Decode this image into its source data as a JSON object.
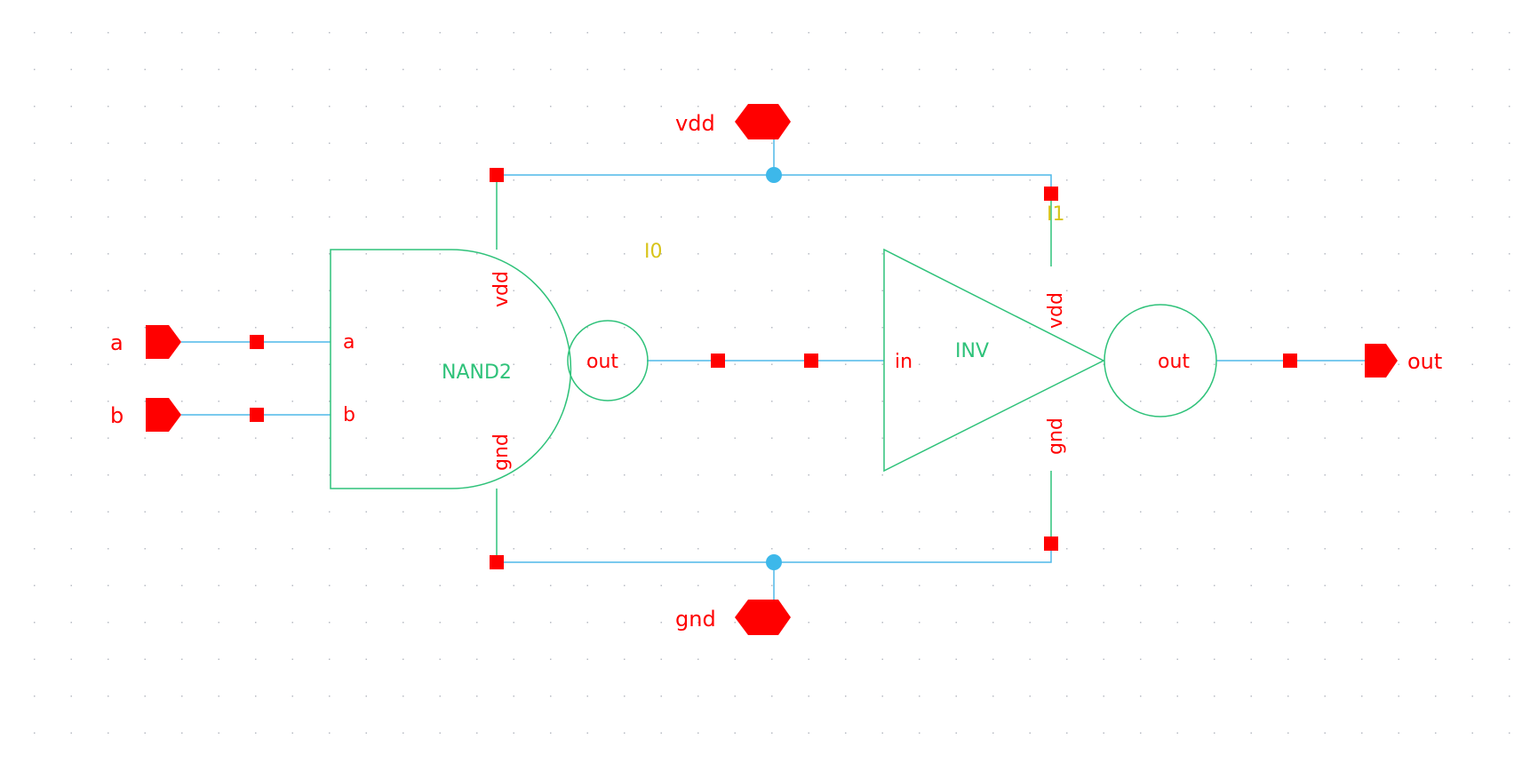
{
  "colors": {
    "background": "#ffffff",
    "grid_dot": "#b8bcc4",
    "wire": "#4fb8e8",
    "symbol": "#2fc27a",
    "pin": "#ff0000",
    "pin_label": "#ff0000",
    "instance_name": "#d8c41a",
    "junction": "#3db8ea"
  },
  "pins": {
    "a": "a",
    "b": "b",
    "out": "out",
    "vdd": "vdd",
    "gnd": "gnd"
  },
  "nand": {
    "instance": "I0",
    "cell": "NAND2",
    "pin_a": "a",
    "pin_b": "b",
    "pin_out": "out",
    "pin_vdd": "vdd",
    "pin_gnd": "gnd"
  },
  "inv": {
    "instance": "I1",
    "cell": "INV",
    "pin_in": "in",
    "pin_out": "out",
    "pin_vdd": "vdd",
    "pin_gnd": "gnd"
  },
  "icons": {
    "input_pin": "input-pin-icon",
    "output_pin": "output-pin-icon",
    "inout_pin": "inout-pin-icon",
    "junction": "junction-dot-icon",
    "connection_point": "connection-square-icon"
  }
}
